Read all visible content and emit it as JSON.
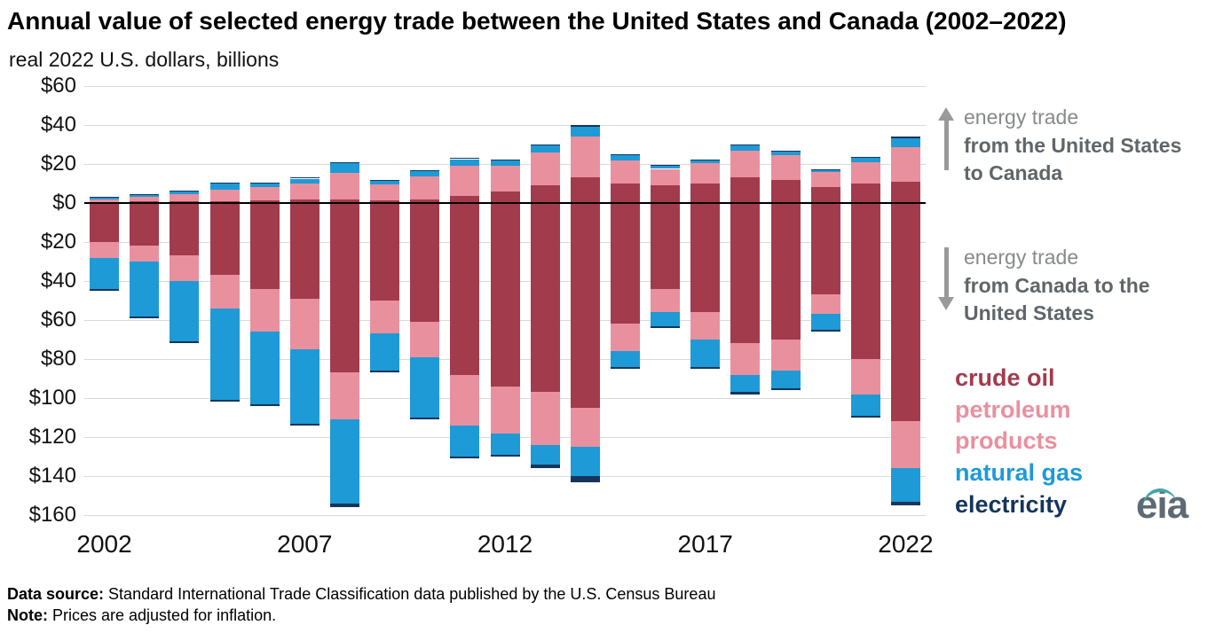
{
  "header": {
    "title": "Annual value of selected energy trade between the United States and Canada (2002–2022)",
    "subtitle": "real 2022 U.S. dollars, billions"
  },
  "annotations": {
    "exports": {
      "direction": "up",
      "prefix": "energy trade",
      "bold": "from the United States to Canada"
    },
    "imports": {
      "direction": "down",
      "prefix": "energy trade",
      "bold": "from Canada to the United States"
    }
  },
  "legend": [
    {
      "label": "crude oil",
      "color": "#a23b4b"
    },
    {
      "label": "petroleum products",
      "color": "#e9909f"
    },
    {
      "label": "natural gas",
      "color": "#1e9ad6"
    },
    {
      "label": "electricity",
      "color": "#16355a"
    }
  ],
  "logo_text": "eia",
  "footer": {
    "source_label": "Data source:",
    "source_text": " Standard International Trade Classification data published by the U.S. Census Bureau",
    "note_label": "Note:",
    "note_text": " Prices are adjusted for inflation."
  },
  "colors": {
    "crude_oil": "#a23b4b",
    "petroleum_products": "#e9909f",
    "natural_gas": "#1e9ad6",
    "electricity": "#16355a",
    "gridline": "#d9d9d9",
    "zero_line": "#000000",
    "arrow_gray": "#9a9a9a"
  },
  "chart_data": {
    "type": "bar",
    "variant": "diverging-stacked",
    "title": "Annual value of selected energy trade between the United States and Canada (2002–2022)",
    "unit": "real 2022 U.S. dollars, billions",
    "grid": true,
    "ylim_up": 60,
    "ylim_down": -160,
    "series_up_label": "energy trade from the United States to Canada",
    "series_down_label": "energy trade from Canada to the United States",
    "stack_order": [
      "crude_oil",
      "petroleum_products",
      "natural_gas",
      "electricity"
    ],
    "categories": [
      2002,
      2003,
      2004,
      2005,
      2006,
      2007,
      2008,
      2009,
      2010,
      2011,
      2012,
      2013,
      2014,
      2015,
      2016,
      2017,
      2018,
      2019,
      2020,
      2021,
      2022
    ],
    "up": {
      "crude_oil": [
        0.5,
        0.7,
        0.8,
        1.0,
        1.5,
        2.0,
        2.0,
        1.5,
        2.0,
        3.5,
        6.0,
        9.0,
        13.0,
        10.0,
        9.0,
        10.0,
        13.0,
        12.0,
        8.0,
        10.0,
        11.0
      ],
      "petroleum_products": [
        1.5,
        2.3,
        3.7,
        6.0,
        6.5,
        8.0,
        13.5,
        8.0,
        11.5,
        15.5,
        13.0,
        17.0,
        21.0,
        12.0,
        8.5,
        10.5,
        14.0,
        12.5,
        8.0,
        11.0,
        17.5
      ],
      "natural_gas": [
        0.7,
        1.2,
        1.5,
        3.0,
        2.0,
        2.5,
        5.0,
        2.0,
        3.0,
        3.5,
        3.0,
        3.5,
        5.0,
        2.5,
        1.5,
        1.5,
        2.5,
        2.0,
        1.0,
        2.0,
        4.5
      ],
      "electricity": [
        0.3,
        0.3,
        0.5,
        0.5,
        0.5,
        0.5,
        0.5,
        0.5,
        0.5,
        0.5,
        0.5,
        0.5,
        1.0,
        0.5,
        0.5,
        0.5,
        0.5,
        0.5,
        0.5,
        0.5,
        1.0
      ]
    },
    "down": {
      "crude_oil": [
        20,
        22,
        27,
        37,
        44,
        49,
        87,
        50,
        61,
        88,
        94,
        97,
        105,
        62,
        44,
        56,
        72,
        70,
        47,
        80,
        112
      ],
      "petroleum_products": [
        8,
        8,
        13,
        17,
        22,
        26,
        24,
        17,
        18,
        26,
        24,
        27,
        20,
        14,
        12,
        14,
        16,
        16,
        10,
        18,
        24
      ],
      "natural_gas": [
        16,
        28,
        31,
        47,
        37,
        38,
        43,
        19,
        31,
        16,
        11,
        10,
        15,
        8,
        7,
        14,
        9,
        9,
        8,
        11,
        17
      ],
      "electricity": [
        1,
        1,
        1,
        1,
        1,
        1,
        2,
        1,
        1,
        1,
        1,
        2,
        3,
        1,
        1,
        1,
        1,
        1,
        1,
        1,
        2
      ]
    },
    "y_ticks": [
      {
        "v": 60,
        "label": "$60"
      },
      {
        "v": 40,
        "label": "$40"
      },
      {
        "v": 20,
        "label": "$20"
      },
      {
        "v": 0,
        "label": "$0"
      },
      {
        "v": -20,
        "label": "$20"
      },
      {
        "v": -40,
        "label": "$40"
      },
      {
        "v": -60,
        "label": "$60"
      },
      {
        "v": -80,
        "label": "$80"
      },
      {
        "v": -100,
        "label": "$100"
      },
      {
        "v": -120,
        "label": "$120"
      },
      {
        "v": -140,
        "label": "$140"
      },
      {
        "v": -160,
        "label": "$160"
      }
    ],
    "x_ticks": [
      {
        "i": 0,
        "label": "2002"
      },
      {
        "i": 5,
        "label": "2007"
      },
      {
        "i": 10,
        "label": "2012"
      },
      {
        "i": 15,
        "label": "2017"
      },
      {
        "i": 20,
        "label": "2022"
      }
    ]
  }
}
